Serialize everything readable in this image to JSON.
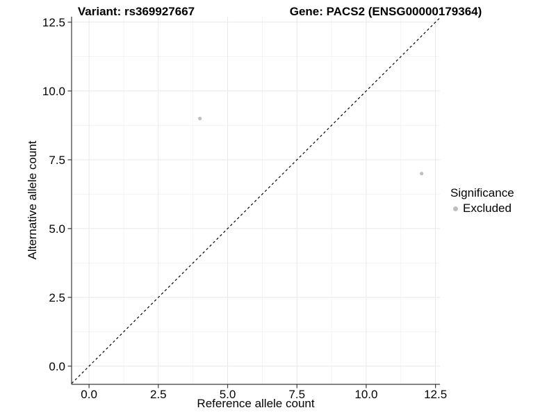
{
  "chart_data": {
    "type": "scatter",
    "title_left": "Variant: rs369927667",
    "title_right": "Gene: PACS2 (ENSG00000179364)",
    "xlabel": "Reference allele count",
    "ylabel": "Alternative allele count",
    "xlim": [
      -0.63,
      12.66
    ],
    "ylim": [
      -0.66,
      12.7
    ],
    "x_ticks": [
      0,
      2.5,
      5,
      7.5,
      10,
      12.5
    ],
    "y_ticks": [
      0,
      2.5,
      5,
      7.5,
      10,
      12.5
    ],
    "x_tick_labels": [
      "0.0",
      "2.5",
      "5.0",
      "7.5",
      "10.0",
      "12.5"
    ],
    "y_tick_labels": [
      "0.0",
      "2.5",
      "5.0",
      "7.5",
      "10.0",
      "12.5"
    ],
    "x_minor_ticks": [
      1.25,
      3.75,
      6.25,
      8.75,
      11.25
    ],
    "y_minor_ticks": [
      1.25,
      3.75,
      6.25,
      8.75,
      11.25
    ],
    "grid": true,
    "identity_line": {
      "type": "y=x",
      "style": "dashed",
      "color": "#000000"
    },
    "series": [
      {
        "name": "Excluded",
        "color": "#bebebe",
        "points": [
          {
            "x": 4,
            "y": 9
          },
          {
            "x": 12,
            "y": 7
          }
        ]
      }
    ],
    "legend": {
      "title": "Significance",
      "position": "right",
      "items": [
        {
          "label": "Excluded",
          "color": "#bebebe"
        }
      ]
    },
    "colors": {
      "grid_major": "#e8e8e8",
      "grid_minor": "#f3f3f3",
      "axis_line": "#3a3a3a",
      "tick_mark": "#3a3a3a",
      "text": "#000000"
    }
  }
}
